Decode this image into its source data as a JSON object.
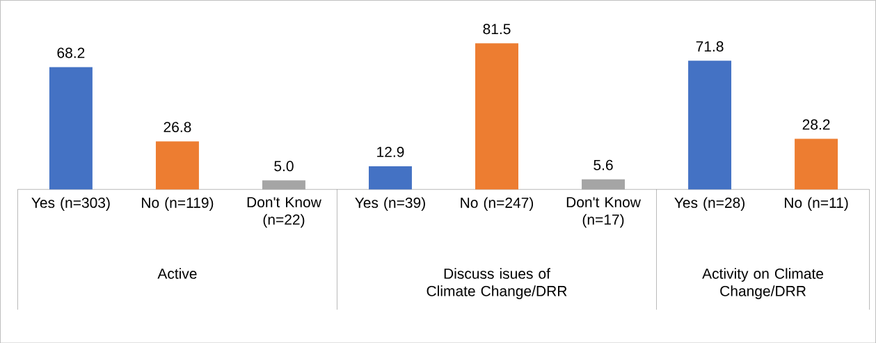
{
  "chart_data": {
    "type": "bar",
    "categories": [
      "Yes (n=303)",
      "No (n=119)",
      "Don't Know (n=22)",
      "Yes (n=39)",
      "No (n=247)",
      "Don't Know (n=17)",
      "Yes (n=28)",
      "No (n=11)"
    ],
    "values": [
      68.2,
      26.8,
      5.0,
      12.9,
      81.5,
      5.6,
      71.8,
      28.2
    ],
    "colors": [
      "#4472c4",
      "#ed7d31",
      "#a5a5a5",
      "#4472c4",
      "#ed7d31",
      "#a5a5a5",
      "#4472c4",
      "#ed7d31"
    ],
    "value_labels": [
      "68.2",
      "26.8",
      "5.0",
      "12.9",
      "81.5",
      "5.6",
      "71.8",
      "28.2"
    ],
    "annotations": [
      "Active",
      "Discuss isues of Climate Change/DRR",
      "Activity on Climate Change/DRR"
    ]
  }
}
